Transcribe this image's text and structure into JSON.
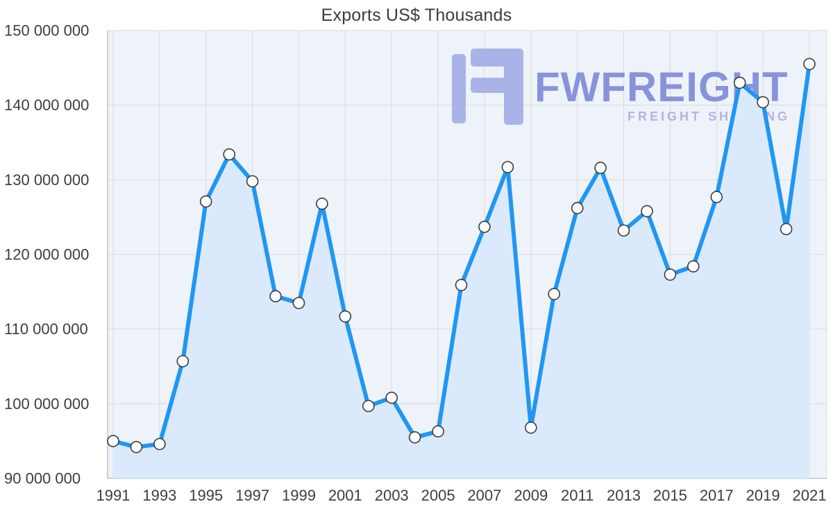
{
  "chart_data": {
    "type": "area",
    "title": "Exports US$ Thousands",
    "xlabel": "",
    "ylabel": "",
    "x": [
      1991,
      1992,
      1993,
      1994,
      1995,
      1996,
      1997,
      1998,
      1999,
      2000,
      2001,
      2002,
      2003,
      2004,
      2005,
      2006,
      2007,
      2008,
      2009,
      2010,
      2011,
      2012,
      2013,
      2014,
      2015,
      2016,
      2017,
      2018,
      2019,
      2020,
      2021
    ],
    "values": [
      95000000,
      94200000,
      94600000,
      105700000,
      127100000,
      133400000,
      129800000,
      114400000,
      113500000,
      126800000,
      111700000,
      99700000,
      100800000,
      95500000,
      96300000,
      115900000,
      123700000,
      131700000,
      96800000,
      114700000,
      126200000,
      131600000,
      123200000,
      125800000,
      117300000,
      118400000,
      127700000,
      143000000,
      140400000,
      123400000,
      145500000
    ],
    "ylim": [
      90000000,
      150000000
    ],
    "ytick_values": [
      90000000,
      100000000,
      110000000,
      120000000,
      130000000,
      140000000,
      150000000
    ],
    "ytick_labels": [
      "90 000 000",
      "100 000 000",
      "110 000 000",
      "120 000 000",
      "130 000 000",
      "140 000 000",
      "150 000 000"
    ],
    "xtick_values": [
      1991,
      1993,
      1995,
      1997,
      1999,
      2001,
      2003,
      2005,
      2007,
      2009,
      2011,
      2013,
      2015,
      2017,
      2019,
      2021
    ],
    "xtick_labels": [
      "1991",
      "1993",
      "1995",
      "1997",
      "1999",
      "2001",
      "2003",
      "2005",
      "2007",
      "2009",
      "2011",
      "2013",
      "2015",
      "2017",
      "2019",
      "2021"
    ],
    "grid": true,
    "legend": "none"
  },
  "watermark": {
    "brand": "FWFREIGHT",
    "tagline": "FREIGHT SHIPPING",
    "logo_icon": "fwfreight-logo",
    "brand_color": "#8893dc",
    "tagline_color": "#b7b1e3",
    "logo_color": "#a9b3e8"
  },
  "colors": {
    "line": "#2196f3",
    "area_fill": "#daeafc",
    "plot_bg": "#eef3fa",
    "grid": "#d9d9d9",
    "axis": "#c2c2c2",
    "marker_fill": "#ffffff",
    "marker_stroke": "#3a3a3a",
    "axis_text": "#3d3d3d",
    "title_text": "#3c3c3c"
  }
}
